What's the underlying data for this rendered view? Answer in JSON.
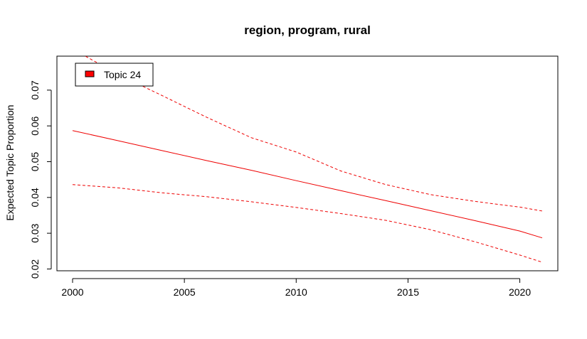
{
  "chart_data": {
    "type": "line",
    "title": "region, program, rural",
    "xlabel": "",
    "ylabel": "Expected Topic Proportion",
    "xlim": [
      1999.3,
      2021.7
    ],
    "ylim": [
      0.0195,
      0.0795
    ],
    "x_ticks": [
      2000,
      2005,
      2010,
      2015,
      2020
    ],
    "y_ticks": [
      0.02,
      0.03,
      0.04,
      0.05,
      0.06,
      0.07
    ],
    "x_tick_labels": [
      "2000",
      "2005",
      "2010",
      "2015",
      "2020"
    ],
    "y_tick_labels": [
      "0.02",
      "0.03",
      "0.04",
      "0.05",
      "0.06",
      "0.07"
    ],
    "grid": false,
    "legend": {
      "position": "top-left",
      "entries": [
        {
          "label": "Topic 24",
          "color": "#ff0000"
        }
      ]
    },
    "color": "#ee0000",
    "series": [
      {
        "name": "Topic 24",
        "role": "estimate",
        "x": [
          2000,
          2002,
          2004,
          2006,
          2008,
          2010,
          2012,
          2014,
          2016,
          2018,
          2020,
          2021
        ],
        "values": [
          0.0587,
          0.0559,
          0.0531,
          0.0503,
          0.0476,
          0.0447,
          0.0419,
          0.0391,
          0.0363,
          0.0335,
          0.0306,
          0.0287
        ]
      },
      {
        "role": "upper",
        "x": [
          2000,
          2002,
          2004,
          2006,
          2008,
          2010,
          2012,
          2014,
          2016,
          2018,
          2020,
          2021
        ],
        "values": [
          0.0815,
          0.0745,
          0.0685,
          0.0624,
          0.0567,
          0.0527,
          0.0474,
          0.0436,
          0.0408,
          0.0389,
          0.0373,
          0.0362
        ]
      },
      {
        "role": "lower",
        "x": [
          2000,
          2002,
          2004,
          2006,
          2008,
          2010,
          2012,
          2014,
          2016,
          2018,
          2020,
          2021
        ],
        "values": [
          0.0436,
          0.0427,
          0.0413,
          0.0402,
          0.0388,
          0.0372,
          0.0355,
          0.0336,
          0.031,
          0.0276,
          0.0239,
          0.0219
        ]
      }
    ]
  }
}
